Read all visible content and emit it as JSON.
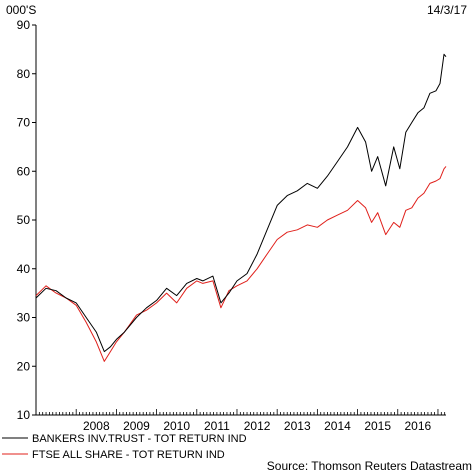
{
  "chart_data": {
    "type": "line",
    "title": "",
    "unit_label": "000'S",
    "date_label": "14/3/17",
    "xlabel": "",
    "ylabel": "",
    "ylim": [
      10,
      90
    ],
    "y_ticks": [
      10,
      20,
      30,
      40,
      50,
      60,
      70,
      80,
      90
    ],
    "xlim": [
      2007.0,
      2017.2
    ],
    "x_ticks": [
      "2008",
      "2009",
      "2010",
      "2011",
      "2012",
      "2013",
      "2014",
      "2015",
      "2016"
    ],
    "grid": false,
    "legend_position": "bottom-left",
    "source": "Source: Thomson Reuters Datastream",
    "series": [
      {
        "name": "BANKERS INV.TRUST - TOT RETURN IND",
        "color": "#000000",
        "x": [
          2007.0,
          2007.25,
          2007.5,
          2007.75,
          2008.0,
          2008.25,
          2008.5,
          2008.7,
          2008.85,
          2009.0,
          2009.2,
          2009.5,
          2009.75,
          2010.0,
          2010.25,
          2010.5,
          2010.75,
          2011.0,
          2011.15,
          2011.4,
          2011.6,
          2011.8,
          2012.0,
          2012.25,
          2012.5,
          2012.75,
          2013.0,
          2013.25,
          2013.5,
          2013.75,
          2014.0,
          2014.25,
          2014.5,
          2014.75,
          2015.0,
          2015.2,
          2015.35,
          2015.5,
          2015.7,
          2015.9,
          2016.05,
          2016.2,
          2016.35,
          2016.5,
          2016.65,
          2016.8,
          2016.95,
          2017.05,
          2017.15,
          2017.2
        ],
        "y": [
          34.0,
          36.0,
          35.5,
          34.0,
          33.0,
          30.0,
          27.0,
          23.0,
          24.0,
          25.5,
          27.0,
          30.0,
          32.0,
          33.5,
          36.0,
          34.5,
          37.0,
          38.0,
          37.5,
          38.5,
          33.0,
          35.0,
          37.5,
          39.0,
          43.0,
          48.0,
          53.0,
          55.0,
          56.0,
          57.5,
          56.5,
          59.0,
          62.0,
          65.0,
          69.0,
          66.0,
          60.0,
          63.0,
          57.0,
          65.0,
          60.5,
          68.0,
          70.0,
          72.0,
          73.0,
          76.0,
          76.5,
          78.0,
          84.0,
          83.5
        ]
      },
      {
        "name": "FTSE ALL SHARE - TOT RETURN IND",
        "color": "#e0201b",
        "x": [
          2007.0,
          2007.25,
          2007.5,
          2007.75,
          2008.0,
          2008.25,
          2008.5,
          2008.7,
          2008.85,
          2009.0,
          2009.2,
          2009.5,
          2009.75,
          2010.0,
          2010.25,
          2010.5,
          2010.75,
          2011.0,
          2011.15,
          2011.4,
          2011.6,
          2011.8,
          2012.0,
          2012.25,
          2012.5,
          2012.75,
          2013.0,
          2013.25,
          2013.5,
          2013.75,
          2014.0,
          2014.25,
          2014.5,
          2014.75,
          2015.0,
          2015.2,
          2015.35,
          2015.5,
          2015.7,
          2015.9,
          2016.05,
          2016.2,
          2016.35,
          2016.5,
          2016.65,
          2016.8,
          2016.95,
          2017.05,
          2017.15,
          2017.2
        ],
        "y": [
          34.5,
          36.5,
          35.0,
          34.0,
          32.5,
          29.0,
          25.0,
          21.0,
          23.0,
          25.0,
          27.0,
          30.5,
          31.5,
          33.0,
          35.0,
          33.0,
          36.0,
          37.5,
          37.0,
          37.5,
          32.0,
          35.5,
          36.5,
          37.5,
          40.0,
          43.0,
          46.0,
          47.5,
          48.0,
          49.0,
          48.5,
          50.0,
          51.0,
          52.0,
          54.0,
          52.5,
          49.5,
          51.5,
          47.0,
          49.5,
          48.5,
          52.0,
          52.5,
          54.5,
          55.5,
          57.5,
          58.0,
          58.5,
          60.5,
          61.0
        ]
      }
    ]
  }
}
